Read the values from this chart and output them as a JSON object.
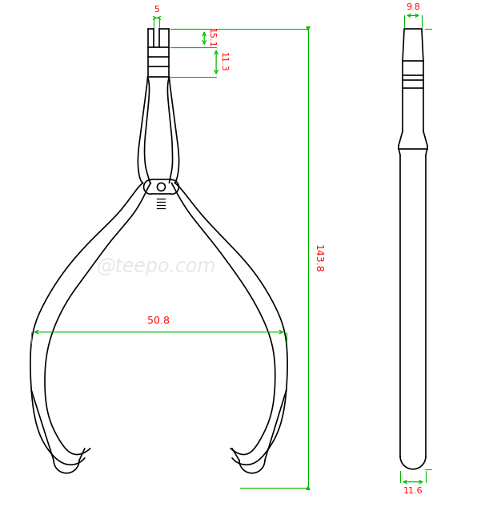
{
  "bg_color": "#ffffff",
  "line_color": "#000000",
  "dim_line_color": "#00bb00",
  "dim_text_color": "#ff0000",
  "watermark_color": "#cccccc",
  "watermark_text": "@teepo.com",
  "dimensions": {
    "tip_width": "5",
    "jaw_length": "15.1",
    "crimp_zone": "11.3",
    "total_height": "143.8",
    "handle_spread": "50.8",
    "side_top_width": "9.8",
    "side_bottom_width": "11.6"
  }
}
